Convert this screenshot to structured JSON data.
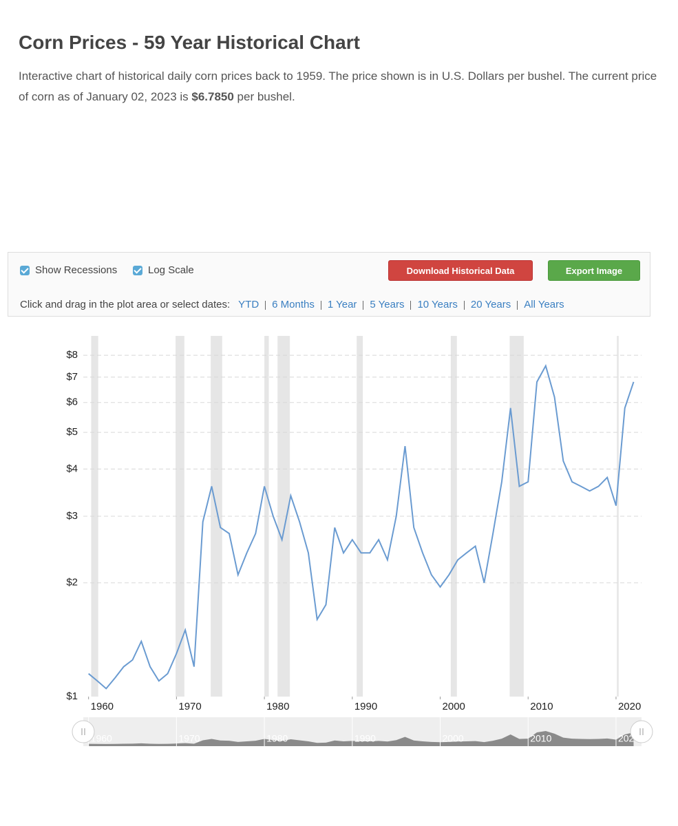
{
  "header": {
    "title": "Corn Prices - 59 Year Historical Chart",
    "description": [
      "Interactive chart of historical daily corn prices back to 1959. The price shown is in U.S. Dollars per bushel. The current price of corn as of January 02, 2023 is ",
      "$6.7850",
      " per bushel."
    ]
  },
  "controls": {
    "checkboxes": [
      "Show Recessions",
      "Log Scale"
    ],
    "buttons": [
      "Download Historical Data",
      "Export Image"
    ],
    "prompt": "Click and drag in the plot area or select dates:",
    "ranges": [
      "YTD",
      "6 Months",
      "1 Year",
      "5 Years",
      "10 Years",
      "20 Years",
      "All Years"
    ]
  },
  "chart_data": {
    "type": "line",
    "log_scale": true,
    "grid": true,
    "color": "#6a9bd1",
    "recession_color": "#e6e6e6",
    "x": [
      1960,
      1961,
      1962,
      1963,
      1964,
      1965,
      1966,
      1967,
      1968,
      1969,
      1970,
      1971,
      1972,
      1973,
      1974,
      1975,
      1976,
      1977,
      1978,
      1979,
      1980,
      1981,
      1982,
      1983,
      1984,
      1985,
      1986,
      1987,
      1988,
      1989,
      1990,
      1991,
      1992,
      1993,
      1994,
      1995,
      1996,
      1997,
      1998,
      1999,
      2000,
      2001,
      2002,
      2003,
      2004,
      2005,
      2006,
      2007,
      2008,
      2009,
      2010,
      2011,
      2012,
      2013,
      2014,
      2015,
      2016,
      2017,
      2018,
      2019,
      2020,
      2021,
      2022
    ],
    "series": [
      {
        "name": "Corn",
        "values": [
          1.15,
          1.1,
          1.05,
          1.12,
          1.2,
          1.25,
          1.4,
          1.2,
          1.1,
          1.15,
          1.3,
          1.5,
          1.2,
          2.9,
          3.6,
          2.8,
          2.7,
          2.1,
          2.4,
          2.7,
          3.6,
          3.0,
          2.6,
          3.4,
          2.9,
          2.4,
          1.6,
          1.75,
          2.8,
          2.4,
          2.6,
          2.4,
          2.4,
          2.6,
          2.3,
          3.0,
          4.6,
          2.8,
          2.4,
          2.1,
          1.95,
          2.1,
          2.3,
          2.4,
          2.5,
          2.0,
          2.7,
          3.7,
          5.8,
          3.6,
          3.7,
          6.8,
          7.5,
          6.2,
          4.2,
          3.7,
          3.6,
          3.5,
          3.6,
          3.8,
          3.2,
          5.8,
          6.8
        ]
      }
    ],
    "recessions": [
      [
        1960.3,
        1961.1
      ],
      [
        1969.9,
        1970.9
      ],
      [
        1973.9,
        1975.2
      ],
      [
        1980.0,
        1980.5
      ],
      [
        1981.5,
        1982.9
      ],
      [
        1990.5,
        1991.2
      ],
      [
        2001.2,
        2001.9
      ],
      [
        2007.9,
        2009.5
      ],
      [
        2020.1,
        2020.3
      ]
    ],
    "xlim": [
      1959.4,
      2022.9
    ],
    "xticks": [
      1960,
      1970,
      1980,
      1990,
      2000,
      2010,
      2020
    ],
    "ylim": [
      1,
      9
    ],
    "yticks": [
      {
        "value": 1,
        "label": "$1"
      },
      {
        "value": 2,
        "label": "$2"
      },
      {
        "value": 3,
        "label": "$3"
      },
      {
        "value": 4,
        "label": "$4"
      },
      {
        "value": 5,
        "label": "$5"
      },
      {
        "value": 6,
        "label": "$6"
      },
      {
        "value": 7,
        "label": "$7"
      },
      {
        "value": 8,
        "label": "$8"
      }
    ]
  }
}
